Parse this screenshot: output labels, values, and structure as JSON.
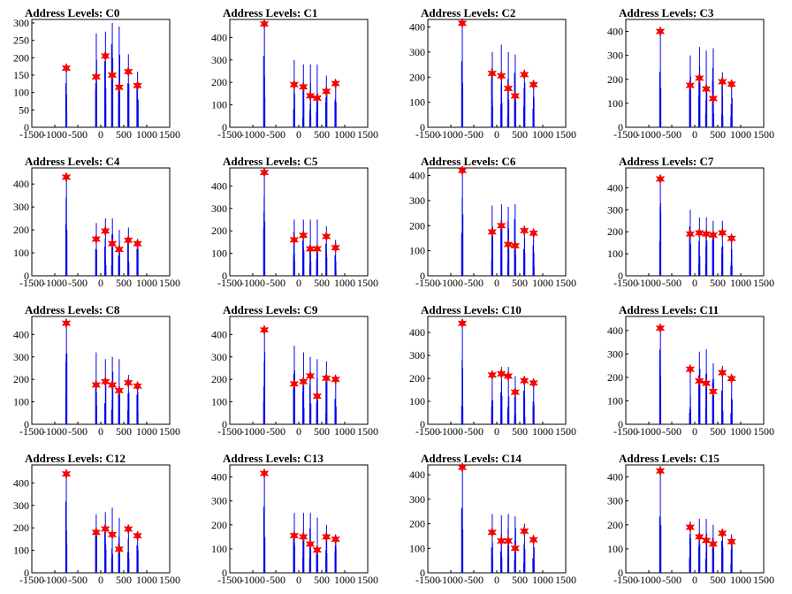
{
  "chart_data": [
    {
      "type": "bar",
      "title": "Address Levels: C0",
      "xlim": [
        -1500,
        1500
      ],
      "ylim": [
        0,
        310
      ],
      "yticks": [
        0,
        50,
        100,
        150,
        200,
        250,
        300
      ],
      "xticks": [
        -1500,
        -1000,
        -500,
        0,
        500,
        1000,
        1500
      ],
      "peaks": {
        "x": [
          -750,
          -100,
          100,
          250,
          400,
          600,
          800
        ],
        "y": [
          170,
          270,
          275,
          300,
          290,
          210,
          160
        ]
      },
      "markers": {
        "x": [
          -750,
          -100,
          100,
          250,
          400,
          600,
          800
        ],
        "y": [
          170,
          145,
          205,
          150,
          115,
          160,
          120
        ]
      }
    },
    {
      "type": "bar",
      "title": "Address Levels: C1",
      "xlim": [
        -1500,
        1500
      ],
      "ylim": [
        0,
        480
      ],
      "yticks": [
        0,
        100,
        200,
        300,
        400
      ],
      "xticks": [
        -1500,
        -1000,
        -500,
        0,
        500,
        1000,
        1500
      ],
      "peaks": {
        "x": [
          -750,
          -100,
          100,
          250,
          400,
          600,
          800
        ],
        "y": [
          460,
          300,
          280,
          280,
          280,
          230,
          200
        ]
      },
      "markers": {
        "x": [
          -750,
          -100,
          100,
          250,
          400,
          600,
          800
        ],
        "y": [
          460,
          190,
          180,
          140,
          130,
          160,
          195
        ]
      }
    },
    {
      "type": "bar",
      "title": "Address Levels: C2",
      "xlim": [
        -1500,
        1500
      ],
      "ylim": [
        0,
        430
      ],
      "yticks": [
        0,
        100,
        200,
        300,
        400
      ],
      "xticks": [
        -1500,
        -1000,
        -500,
        0,
        500,
        1000,
        1500
      ],
      "peaks": {
        "x": [
          -750,
          -100,
          100,
          250,
          400,
          600,
          800
        ],
        "y": [
          415,
          300,
          330,
          300,
          290,
          230,
          180
        ]
      },
      "markers": {
        "x": [
          -750,
          -100,
          100,
          250,
          400,
          600,
          800
        ],
        "y": [
          415,
          215,
          205,
          155,
          125,
          210,
          170
        ]
      }
    },
    {
      "type": "bar",
      "title": "Address Levels: C3",
      "xlim": [
        -1500,
        1500
      ],
      "ylim": [
        0,
        450
      ],
      "yticks": [
        0,
        100,
        200,
        300,
        400
      ],
      "xticks": [
        -1500,
        -1000,
        -500,
        0,
        500,
        1000,
        1500
      ],
      "peaks": {
        "x": [
          -750,
          -100,
          100,
          250,
          400,
          600,
          800
        ],
        "y": [
          400,
          300,
          335,
          320,
          330,
          230,
          180
        ]
      },
      "markers": {
        "x": [
          -750,
          -100,
          100,
          250,
          400,
          600,
          800
        ],
        "y": [
          400,
          175,
          205,
          160,
          120,
          190,
          180
        ]
      }
    },
    {
      "type": "bar",
      "title": "Address Levels: C4",
      "xlim": [
        -1500,
        1500
      ],
      "ylim": [
        0,
        470
      ],
      "yticks": [
        0,
        100,
        200,
        300,
        400
      ],
      "xticks": [
        -1500,
        -1000,
        -500,
        0,
        500,
        1000,
        1500
      ],
      "peaks": {
        "x": [
          -750,
          -100,
          100,
          250,
          400,
          600,
          800
        ],
        "y": [
          430,
          230,
          250,
          250,
          200,
          210,
          160
        ]
      },
      "markers": {
        "x": [
          -750,
          -100,
          100,
          250,
          400,
          600,
          800
        ],
        "y": [
          430,
          160,
          195,
          140,
          115,
          155,
          140
        ]
      }
    },
    {
      "type": "bar",
      "title": "Address Levels: C5",
      "xlim": [
        -1500,
        1500
      ],
      "ylim": [
        0,
        480
      ],
      "yticks": [
        0,
        100,
        200,
        300,
        400
      ],
      "xticks": [
        -1500,
        -1000,
        -500,
        0,
        500,
        1000,
        1500
      ],
      "peaks": {
        "x": [
          -750,
          -100,
          100,
          250,
          400,
          600,
          800
        ],
        "y": [
          460,
          250,
          250,
          250,
          250,
          220,
          160
        ]
      },
      "markers": {
        "x": [
          -750,
          -100,
          100,
          250,
          400,
          600,
          800
        ],
        "y": [
          460,
          160,
          180,
          120,
          120,
          175,
          125
        ]
      }
    },
    {
      "type": "bar",
      "title": "Address Levels: C6",
      "xlim": [
        -1500,
        1500
      ],
      "ylim": [
        0,
        430
      ],
      "yticks": [
        0,
        100,
        200,
        300,
        400
      ],
      "xticks": [
        -1500,
        -1000,
        -500,
        0,
        500,
        1000,
        1500
      ],
      "peaks": {
        "x": [
          -750,
          -100,
          100,
          250,
          400,
          600,
          800
        ],
        "y": [
          420,
          280,
          285,
          275,
          285,
          200,
          170
        ]
      },
      "markers": {
        "x": [
          -750,
          -100,
          100,
          250,
          400,
          600,
          800
        ],
        "y": [
          420,
          175,
          200,
          125,
          120,
          180,
          170
        ]
      }
    },
    {
      "type": "bar",
      "title": "Address Levels: C7",
      "xlim": [
        -1500,
        1500
      ],
      "ylim": [
        0,
        490
      ],
      "yticks": [
        0,
        100,
        200,
        300,
        400
      ],
      "xticks": [
        -1500,
        -1000,
        -500,
        0,
        500,
        1000,
        1500
      ],
      "peaks": {
        "x": [
          -750,
          -100,
          100,
          250,
          400,
          600,
          800
        ],
        "y": [
          440,
          300,
          265,
          265,
          250,
          250,
          180
        ]
      },
      "markers": {
        "x": [
          -750,
          -100,
          100,
          250,
          400,
          600,
          800
        ],
        "y": [
          440,
          190,
          195,
          190,
          185,
          195,
          170
        ]
      }
    },
    {
      "type": "bar",
      "title": "Address Levels: C8",
      "xlim": [
        -1500,
        1500
      ],
      "ylim": [
        0,
        480
      ],
      "yticks": [
        0,
        100,
        200,
        300,
        400
      ],
      "xticks": [
        -1500,
        -1000,
        -500,
        0,
        500,
        1000,
        1500
      ],
      "peaks": {
        "x": [
          -750,
          -100,
          100,
          250,
          400,
          600,
          800
        ],
        "y": [
          450,
          320,
          290,
          300,
          290,
          220,
          180
        ]
      },
      "markers": {
        "x": [
          -750,
          -100,
          100,
          250,
          400,
          600,
          800
        ],
        "y": [
          450,
          175,
          190,
          175,
          150,
          185,
          170
        ]
      }
    },
    {
      "type": "bar",
      "title": "Address Levels: C9",
      "xlim": [
        -1500,
        1500
      ],
      "ylim": [
        0,
        480
      ],
      "yticks": [
        0,
        100,
        200,
        300,
        400
      ],
      "xticks": [
        -1500,
        -1000,
        -500,
        0,
        500,
        1000,
        1500
      ],
      "peaks": {
        "x": [
          -750,
          -100,
          100,
          250,
          400,
          600,
          800
        ],
        "y": [
          420,
          350,
          320,
          300,
          290,
          280,
          200
        ]
      },
      "markers": {
        "x": [
          -750,
          -100,
          100,
          250,
          400,
          600,
          800
        ],
        "y": [
          420,
          180,
          190,
          215,
          125,
          205,
          200
        ]
      }
    },
    {
      "type": "bar",
      "title": "Address Levels: C10",
      "xlim": [
        -1500,
        1500
      ],
      "ylim": [
        0,
        470
      ],
      "yticks": [
        0,
        100,
        200,
        300,
        400
      ],
      "xticks": [
        -1500,
        -1000,
        -500,
        0,
        500,
        1000,
        1500
      ],
      "peaks": {
        "x": [
          -750,
          -100,
          100,
          250,
          400,
          600,
          800
        ],
        "y": [
          440,
          225,
          250,
          250,
          210,
          210,
          190
        ]
      },
      "markers": {
        "x": [
          -750,
          -100,
          100,
          250,
          400,
          600,
          800
        ],
        "y": [
          440,
          215,
          220,
          210,
          140,
          190,
          180
        ]
      }
    },
    {
      "type": "bar",
      "title": "Address Levels: C11",
      "xlim": [
        -1500,
        1500
      ],
      "ylim": [
        0,
        460
      ],
      "yticks": [
        0,
        100,
        200,
        300,
        400
      ],
      "xticks": [
        -1500,
        -1000,
        -500,
        0,
        500,
        1000,
        1500
      ],
      "peaks": {
        "x": [
          -750,
          -100,
          100,
          250,
          400,
          600,
          800
        ],
        "y": [
          410,
          250,
          310,
          320,
          260,
          250,
          200
        ]
      },
      "markers": {
        "x": [
          -750,
          -100,
          100,
          250,
          400,
          600,
          800
        ],
        "y": [
          410,
          235,
          185,
          175,
          140,
          220,
          195
        ]
      }
    },
    {
      "type": "bar",
      "title": "Address Levels: C12",
      "xlim": [
        -1500,
        1500
      ],
      "ylim": [
        0,
        480
      ],
      "yticks": [
        0,
        100,
        200,
        300,
        400
      ],
      "xticks": [
        -1500,
        -1000,
        -500,
        0,
        500,
        1000,
        1500
      ],
      "peaks": {
        "x": [
          -750,
          -100,
          100,
          250,
          400,
          600,
          800
        ],
        "y": [
          440,
          260,
          270,
          290,
          245,
          200,
          170
        ]
      },
      "markers": {
        "x": [
          -750,
          -100,
          100,
          250,
          400,
          600,
          800
        ],
        "y": [
          440,
          180,
          195,
          170,
          105,
          195,
          165
        ]
      }
    },
    {
      "type": "bar",
      "title": "Address Levels: C13",
      "xlim": [
        -1500,
        1500
      ],
      "ylim": [
        0,
        450
      ],
      "yticks": [
        0,
        100,
        200,
        300,
        400
      ],
      "xticks": [
        -1500,
        -1000,
        -500,
        0,
        500,
        1000,
        1500
      ],
      "peaks": {
        "x": [
          -750,
          -100,
          100,
          250,
          400,
          600,
          800
        ],
        "y": [
          415,
          250,
          250,
          250,
          230,
          200,
          160
        ]
      },
      "markers": {
        "x": [
          -750,
          -100,
          100,
          250,
          400,
          600,
          800
        ],
        "y": [
          415,
          155,
          150,
          120,
          95,
          150,
          140
        ]
      }
    },
    {
      "type": "bar",
      "title": "Address Levels: C14",
      "xlim": [
        -1500,
        1500
      ],
      "ylim": [
        0,
        440
      ],
      "yticks": [
        0,
        100,
        200,
        300,
        400
      ],
      "xticks": [
        -1500,
        -1000,
        -500,
        0,
        500,
        1000,
        1500
      ],
      "peaks": {
        "x": [
          -750,
          -100,
          100,
          250,
          400,
          600,
          800
        ],
        "y": [
          430,
          240,
          235,
          240,
          230,
          200,
          150
        ]
      },
      "markers": {
        "x": [
          -750,
          -100,
          100,
          250,
          400,
          600,
          800
        ],
        "y": [
          430,
          165,
          130,
          130,
          100,
          170,
          135
        ]
      }
    },
    {
      "type": "bar",
      "title": "Address Levels: C15",
      "xlim": [
        -1500,
        1500
      ],
      "ylim": [
        0,
        450
      ],
      "yticks": [
        0,
        100,
        200,
        300,
        400
      ],
      "xticks": [
        -1500,
        -1000,
        -500,
        0,
        500,
        1000,
        1500
      ],
      "peaks": {
        "x": [
          -750,
          -100,
          100,
          250,
          400,
          600,
          800
        ],
        "y": [
          425,
          215,
          225,
          225,
          200,
          180,
          160
        ]
      },
      "markers": {
        "x": [
          -750,
          -100,
          100,
          250,
          400,
          600,
          800
        ],
        "y": [
          425,
          190,
          150,
          135,
          120,
          165,
          130
        ]
      }
    }
  ]
}
